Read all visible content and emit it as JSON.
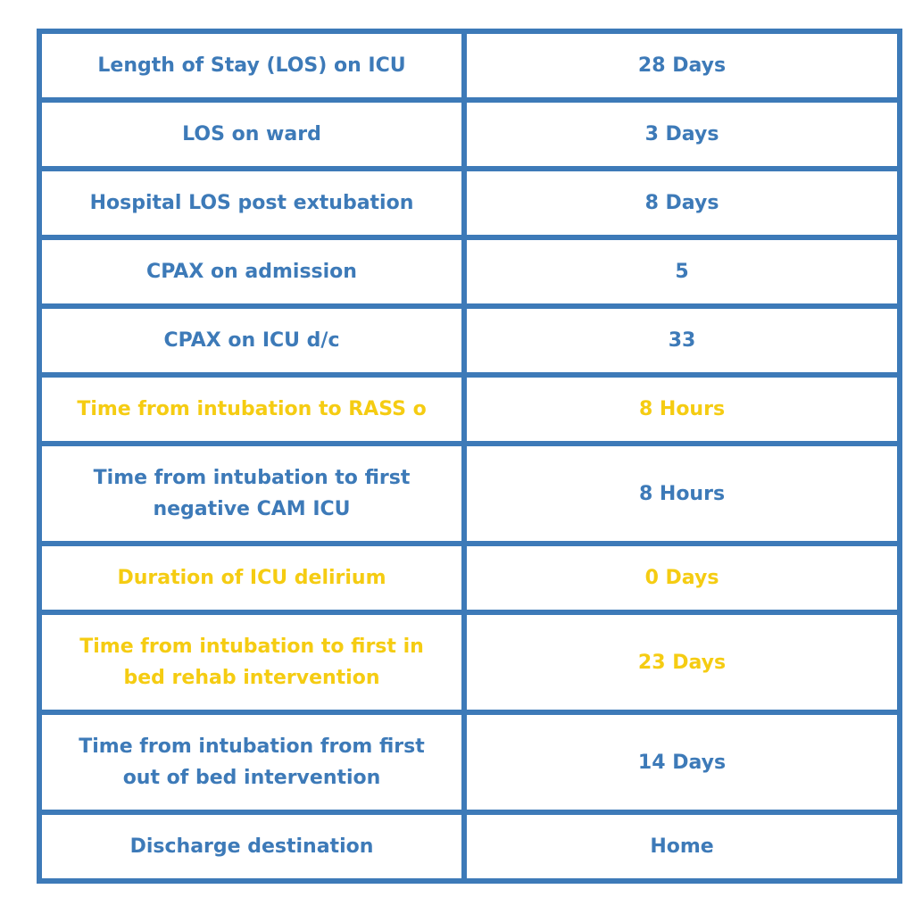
{
  "table": {
    "rows": [
      {
        "label": "Length of Stay (LOS) on ICU",
        "value": "28 Days",
        "highlighted": false
      },
      {
        "label": "LOS on ward",
        "value": "3 Days",
        "highlighted": false
      },
      {
        "label": "Hospital LOS post extubation",
        "value": "8 Days",
        "highlighted": false
      },
      {
        "label": "CPAX on admission",
        "value": "5",
        "highlighted": false
      },
      {
        "label": "CPAX on ICU d/c",
        "value": "33",
        "highlighted": false
      },
      {
        "label": "Time from intubation to RASS o",
        "value": "8 Hours",
        "highlighted": true
      },
      {
        "label": "Time from intubation to first negative CAM ICU",
        "value": "8 Hours",
        "highlighted": false
      },
      {
        "label": "Duration of ICU delirium",
        "value": "0 Days",
        "highlighted": true
      },
      {
        "label": "Time from intubation to first in bed rehab intervention",
        "value": "23 Days",
        "highlighted": true
      },
      {
        "label": "Time from intubation from first out of bed intervention",
        "value": "14 Days",
        "highlighted": false
      },
      {
        "label": "Discharge destination",
        "value": "Home",
        "highlighted": false
      }
    ]
  },
  "colors": {
    "border": "#3d7ab8",
    "text": "#3d7ab8",
    "highlight_text": "#f5cc12",
    "background": "#ffffff"
  }
}
